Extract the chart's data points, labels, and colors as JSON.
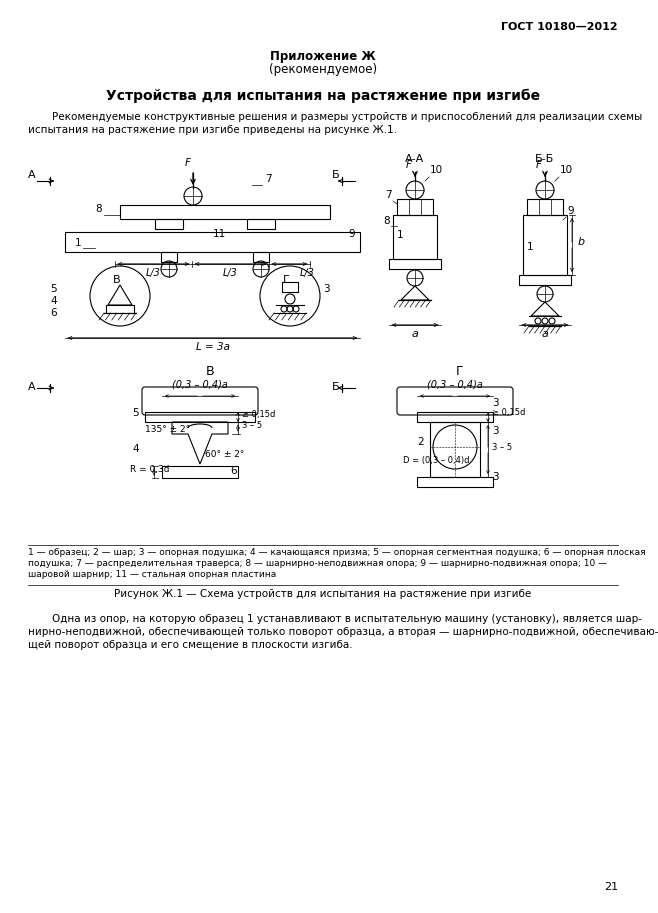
{
  "page_number": "21",
  "header_right": "ГОСТ 10180—2012",
  "appendix_title": "Приложение Ж",
  "appendix_subtitle": "(рекомендуемое)",
  "section_title": "Устройства для испытания на растяжение при изгибе",
  "para1_line1": "Рекомендуемые конструктивные решения и размеры устройств и приспособлений для реализации схемы",
  "para1_line2": "испытания на растяжение при изгибе приведены на рисунке Ж.1.",
  "figure_caption": "Рисунок Ж.1 — Схема устройств для испытания на растяжение при изгибе",
  "legend_line1": "1 — образец; 2 — шар; 3 — опорная подушка; 4 — качающаяся призма; 5 — опорная сегментная подушка; 6 — опорная плоская",
  "legend_line2": "подушка; 7 — распределительная траверса; 8 — шарнирно-неподвижная опора; 9 — шарнирно-подвижная опора; 10 —",
  "legend_line3": "шаровой шарнир; 11 — стальная опорная пластина",
  "para2_line1": "Одна из опор, на которую образец 1 устанавливают в испытательную машину (установку), является шар­нирно-неподвижной, обеспечивающей только поворот образца, а вторая — шарнирно-подвижной, обеспечиваю­щей поворот образца и его смещение в плоскости изгиба.",
  "bg_color": "#ffffff",
  "text_color": "#000000"
}
